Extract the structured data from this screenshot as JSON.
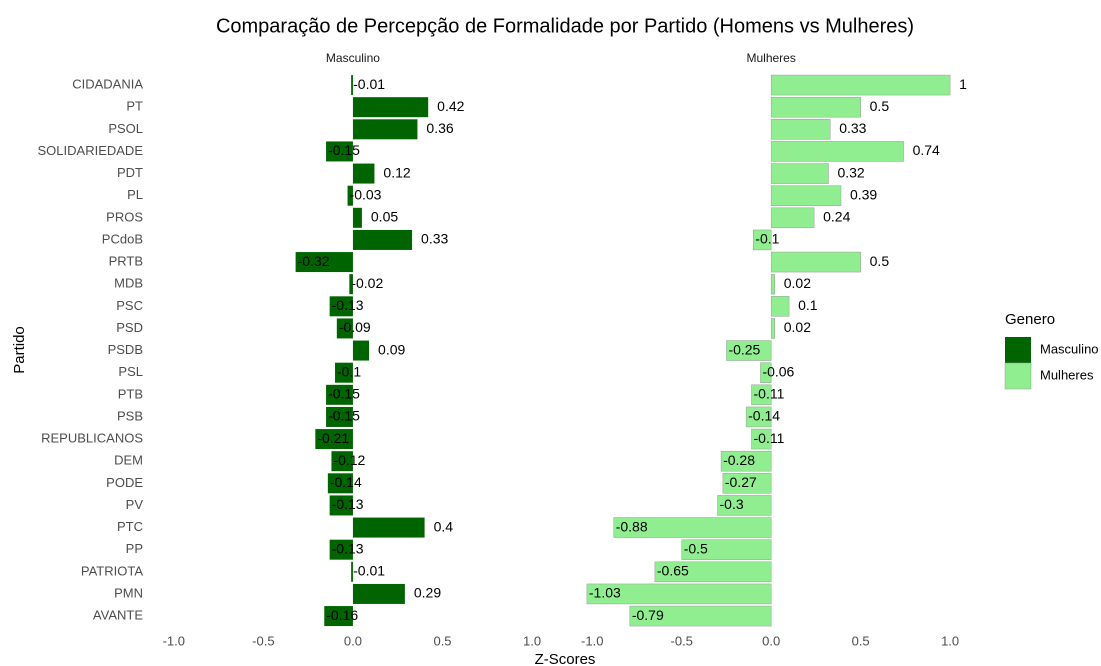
{
  "chart_data": {
    "type": "bar",
    "orientation": "horizontal",
    "title": "Comparação de Percepção de Formalidade por Partido (Homens vs Mulheres)",
    "xlabel": "Z-Scores",
    "ylabel": "Partido",
    "legend_title": "Genero",
    "legend": "right",
    "categories": [
      "CIDADANIA",
      "PT",
      "PSOL",
      "SOLIDARIEDADE",
      "PDT",
      "PL",
      "PROS",
      "PCdoB",
      "PRTB",
      "MDB",
      "PSC",
      "PSD",
      "PSDB",
      "PSL",
      "PTB",
      "PSB",
      "REPUBLICANOS",
      "DEM",
      "PODE",
      "PV",
      "PTC",
      "PP",
      "PATRIOTA",
      "PMN",
      "AVANTE"
    ],
    "series": [
      {
        "name": "Masculino",
        "color": "#006400",
        "values": [
          -0.01,
          0.42,
          0.36,
          -0.15,
          0.12,
          -0.03,
          0.05,
          0.33,
          -0.32,
          -0.02,
          -0.13,
          -0.09,
          0.09,
          -0.1,
          -0.15,
          -0.15,
          -0.21,
          -0.12,
          -0.14,
          -0.13,
          0.4,
          -0.13,
          -0.01,
          0.29,
          -0.16
        ]
      },
      {
        "name": "Mulheres",
        "color": "#90EE90",
        "values": [
          1,
          0.5,
          0.33,
          0.74,
          0.32,
          0.39,
          0.24,
          -0.1,
          0.5,
          0.02,
          0.1,
          0.02,
          -0.25,
          -0.06,
          -0.11,
          -0.14,
          -0.11,
          -0.28,
          -0.27,
          -0.3,
          -0.88,
          -0.5,
          -0.65,
          -1.03,
          -0.79
        ]
      }
    ],
    "xlim": [
      -1.13,
      1.1
    ],
    "xticks": [
      {
        "value": -1,
        "label": "-1.0"
      },
      {
        "value": -0.5,
        "label": "-0.5"
      },
      {
        "value": 0,
        "label": "0.0"
      },
      {
        "value": 0.5,
        "label": "0.5"
      },
      {
        "value": 1,
        "label": "1.0"
      }
    ],
    "grid": false
  }
}
